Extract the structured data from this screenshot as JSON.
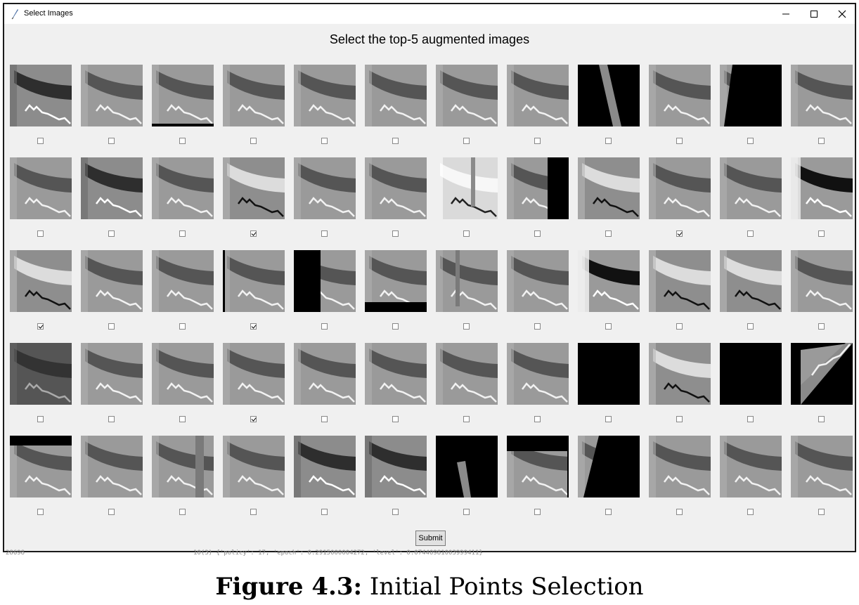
{
  "window": {
    "title": "Select Images",
    "heading": "Select the top-5 augmented images",
    "submit_label": "Submit"
  },
  "grid": {
    "rows": 5,
    "cols": 12,
    "tiles": [
      [
        "dark",
        "norm",
        "bottombar",
        "norm",
        "norm",
        "norm",
        "norm",
        "norm",
        "blackstrip",
        "norm",
        "blackwedge",
        "norm"
      ],
      [
        "norm",
        "dark",
        "norm",
        "bright",
        "norm",
        "norm",
        "brightvbar",
        "rightblack",
        "bright",
        "norm",
        "norm",
        "darkright"
      ],
      [
        "bright",
        "norm",
        "norm",
        "leftline",
        "leftblack",
        "bottomblack",
        "vline",
        "norm",
        "darkleft",
        "bright",
        "bright",
        "norm"
      ],
      [
        "dim",
        "norm",
        "norm",
        "norm",
        "norm",
        "norm",
        "norm",
        "norm",
        "allblack",
        "bright",
        "allblack",
        "rotated"
      ],
      [
        "topblack",
        "norm",
        "vbar",
        "norm",
        "dark",
        "dark",
        "blackstrip2",
        "topblack2",
        "wedge2",
        "norm",
        "norm",
        "norm"
      ]
    ],
    "checked": [
      [
        false,
        false,
        false,
        false,
        false,
        false,
        false,
        false,
        false,
        false,
        false,
        false
      ],
      [
        false,
        false,
        false,
        true,
        false,
        false,
        false,
        false,
        false,
        true,
        false,
        false
      ],
      [
        true,
        false,
        false,
        true,
        false,
        false,
        false,
        false,
        false,
        false,
        false,
        false
      ],
      [
        false,
        false,
        false,
        true,
        false,
        false,
        false,
        false,
        false,
        false,
        false,
        false
      ],
      [
        false,
        false,
        false,
        false,
        false,
        false,
        false,
        false,
        false,
        false,
        false,
        false
      ]
    ]
  },
  "console": {
    "left": "28698",
    "right": "10(3)  {'policy': 17, 'epoch': 0.2915000004272, 'level': 0.07440981003999411}"
  },
  "caption": {
    "label": "Figure 4.3:",
    "text": "Initial Points Selection"
  }
}
